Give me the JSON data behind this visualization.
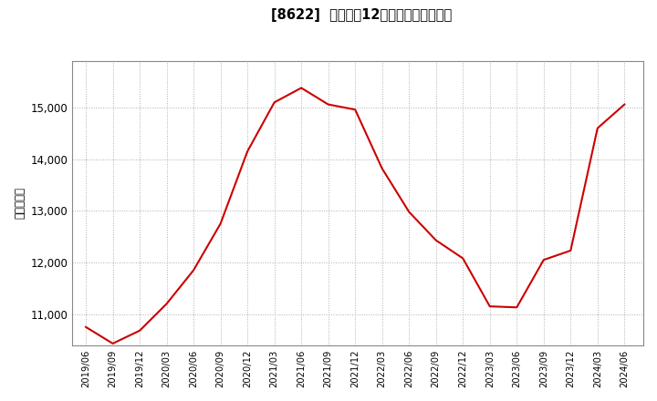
{
  "title": "[8622]  売上高の12か月移動合計の推移",
  "ylabel": "（百万円）",
  "line_color": "#cc0000",
  "line_width": 1.5,
  "background_color": "#ffffff",
  "grid_color": "#999999",
  "ylim": [
    10400,
    15900
  ],
  "yticks": [
    11000,
    12000,
    13000,
    14000,
    15000
  ],
  "dates": [
    "2019/06",
    "2019/09",
    "2019/12",
    "2020/03",
    "2020/06",
    "2020/09",
    "2020/12",
    "2021/03",
    "2021/06",
    "2021/09",
    "2021/12",
    "2022/03",
    "2022/06",
    "2022/09",
    "2022/12",
    "2023/03",
    "2023/06",
    "2023/09",
    "2023/12",
    "2024/03",
    "2024/06"
  ],
  "values": [
    10750,
    10430,
    10680,
    11200,
    11850,
    12750,
    14150,
    15100,
    15380,
    15060,
    14960,
    13820,
    12980,
    12430,
    12080,
    11150,
    11130,
    12050,
    12230,
    14600,
    15060
  ]
}
